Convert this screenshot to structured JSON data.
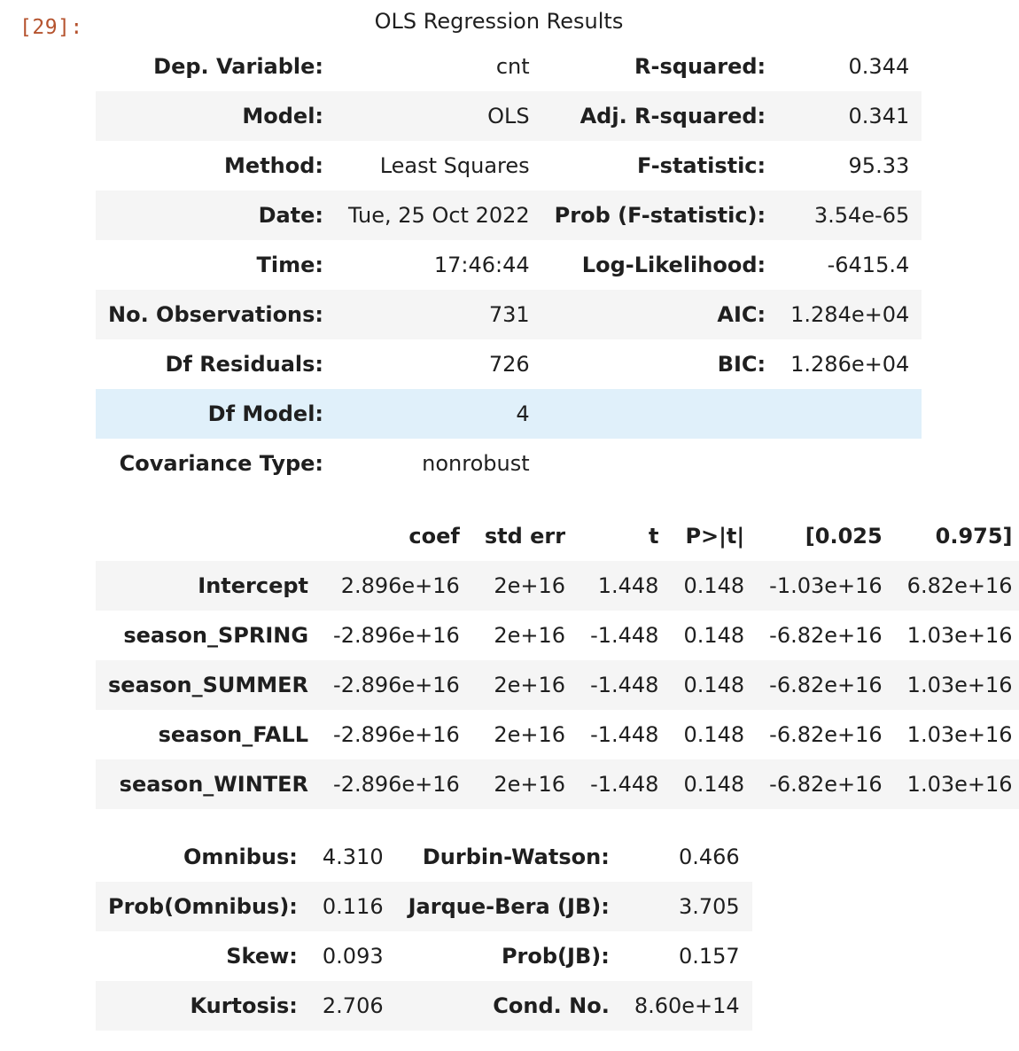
{
  "cell": {
    "prompt": "[29]:",
    "caption": "OLS Regression Results"
  },
  "summary": [
    {
      "l1": "Dep. Variable:",
      "v1": "cnt",
      "l2": "R-squared:",
      "v2": "0.344"
    },
    {
      "l1": "Model:",
      "v1": "OLS",
      "l2": "Adj. R-squared:",
      "v2": "0.341"
    },
    {
      "l1": "Method:",
      "v1": "Least Squares",
      "l2": "F-statistic:",
      "v2": "95.33"
    },
    {
      "l1": "Date:",
      "v1": "Tue, 25 Oct 2022",
      "l2": "Prob (F-statistic):",
      "v2": "3.54e-65"
    },
    {
      "l1": "Time:",
      "v1": "17:46:44",
      "l2": "Log-Likelihood:",
      "v2": "-6415.4"
    },
    {
      "l1": "No. Observations:",
      "v1": "731",
      "l2": "AIC:",
      "v2": "1.284e+04"
    },
    {
      "l1": "Df Residuals:",
      "v1": "726",
      "l2": "BIC:",
      "v2": "1.286e+04"
    },
    {
      "l1": "Df Model:",
      "v1": "4",
      "l2": "",
      "v2": ""
    },
    {
      "l1": "Covariance Type:",
      "v1": "nonrobust",
      "l2": "",
      "v2": ""
    }
  ],
  "coef": {
    "headers": [
      "",
      "coef",
      "std err",
      "t",
      "P>|t|",
      "[0.025",
      "0.975]"
    ],
    "rows": [
      {
        "name": "Intercept",
        "coef": "2.896e+16",
        "stderr": "2e+16",
        "t": "1.448",
        "p": "0.148",
        "lo": "-1.03e+16",
        "hi": "6.82e+16"
      },
      {
        "name": "season_SPRING",
        "coef": "-2.896e+16",
        "stderr": "2e+16",
        "t": "-1.448",
        "p": "0.148",
        "lo": "-6.82e+16",
        "hi": "1.03e+16"
      },
      {
        "name": "season_SUMMER",
        "coef": "-2.896e+16",
        "stderr": "2e+16",
        "t": "-1.448",
        "p": "0.148",
        "lo": "-6.82e+16",
        "hi": "1.03e+16"
      },
      {
        "name": "season_FALL",
        "coef": "-2.896e+16",
        "stderr": "2e+16",
        "t": "-1.448",
        "p": "0.148",
        "lo": "-6.82e+16",
        "hi": "1.03e+16"
      },
      {
        "name": "season_WINTER",
        "coef": "-2.896e+16",
        "stderr": "2e+16",
        "t": "-1.448",
        "p": "0.148",
        "lo": "-6.82e+16",
        "hi": "1.03e+16"
      }
    ]
  },
  "diagnostics": [
    {
      "l1": "Omnibus:",
      "v1": "4.310",
      "l2": "Durbin-Watson:",
      "v2": "0.466"
    },
    {
      "l1": "Prob(Omnibus):",
      "v1": "0.116",
      "l2": "Jarque-Bera (JB):",
      "v2": "3.705"
    },
    {
      "l1": "Skew:",
      "v1": "0.093",
      "l2": "Prob(JB):",
      "v2": "0.157"
    },
    {
      "l1": "Kurtosis:",
      "v1": "2.706",
      "l2": "Cond. No.",
      "v2": "8.60e+14"
    }
  ],
  "colors": {
    "stripe": "#f5f5f5",
    "hover_row": "#e0f0fa",
    "prompt": "#b5532e"
  }
}
